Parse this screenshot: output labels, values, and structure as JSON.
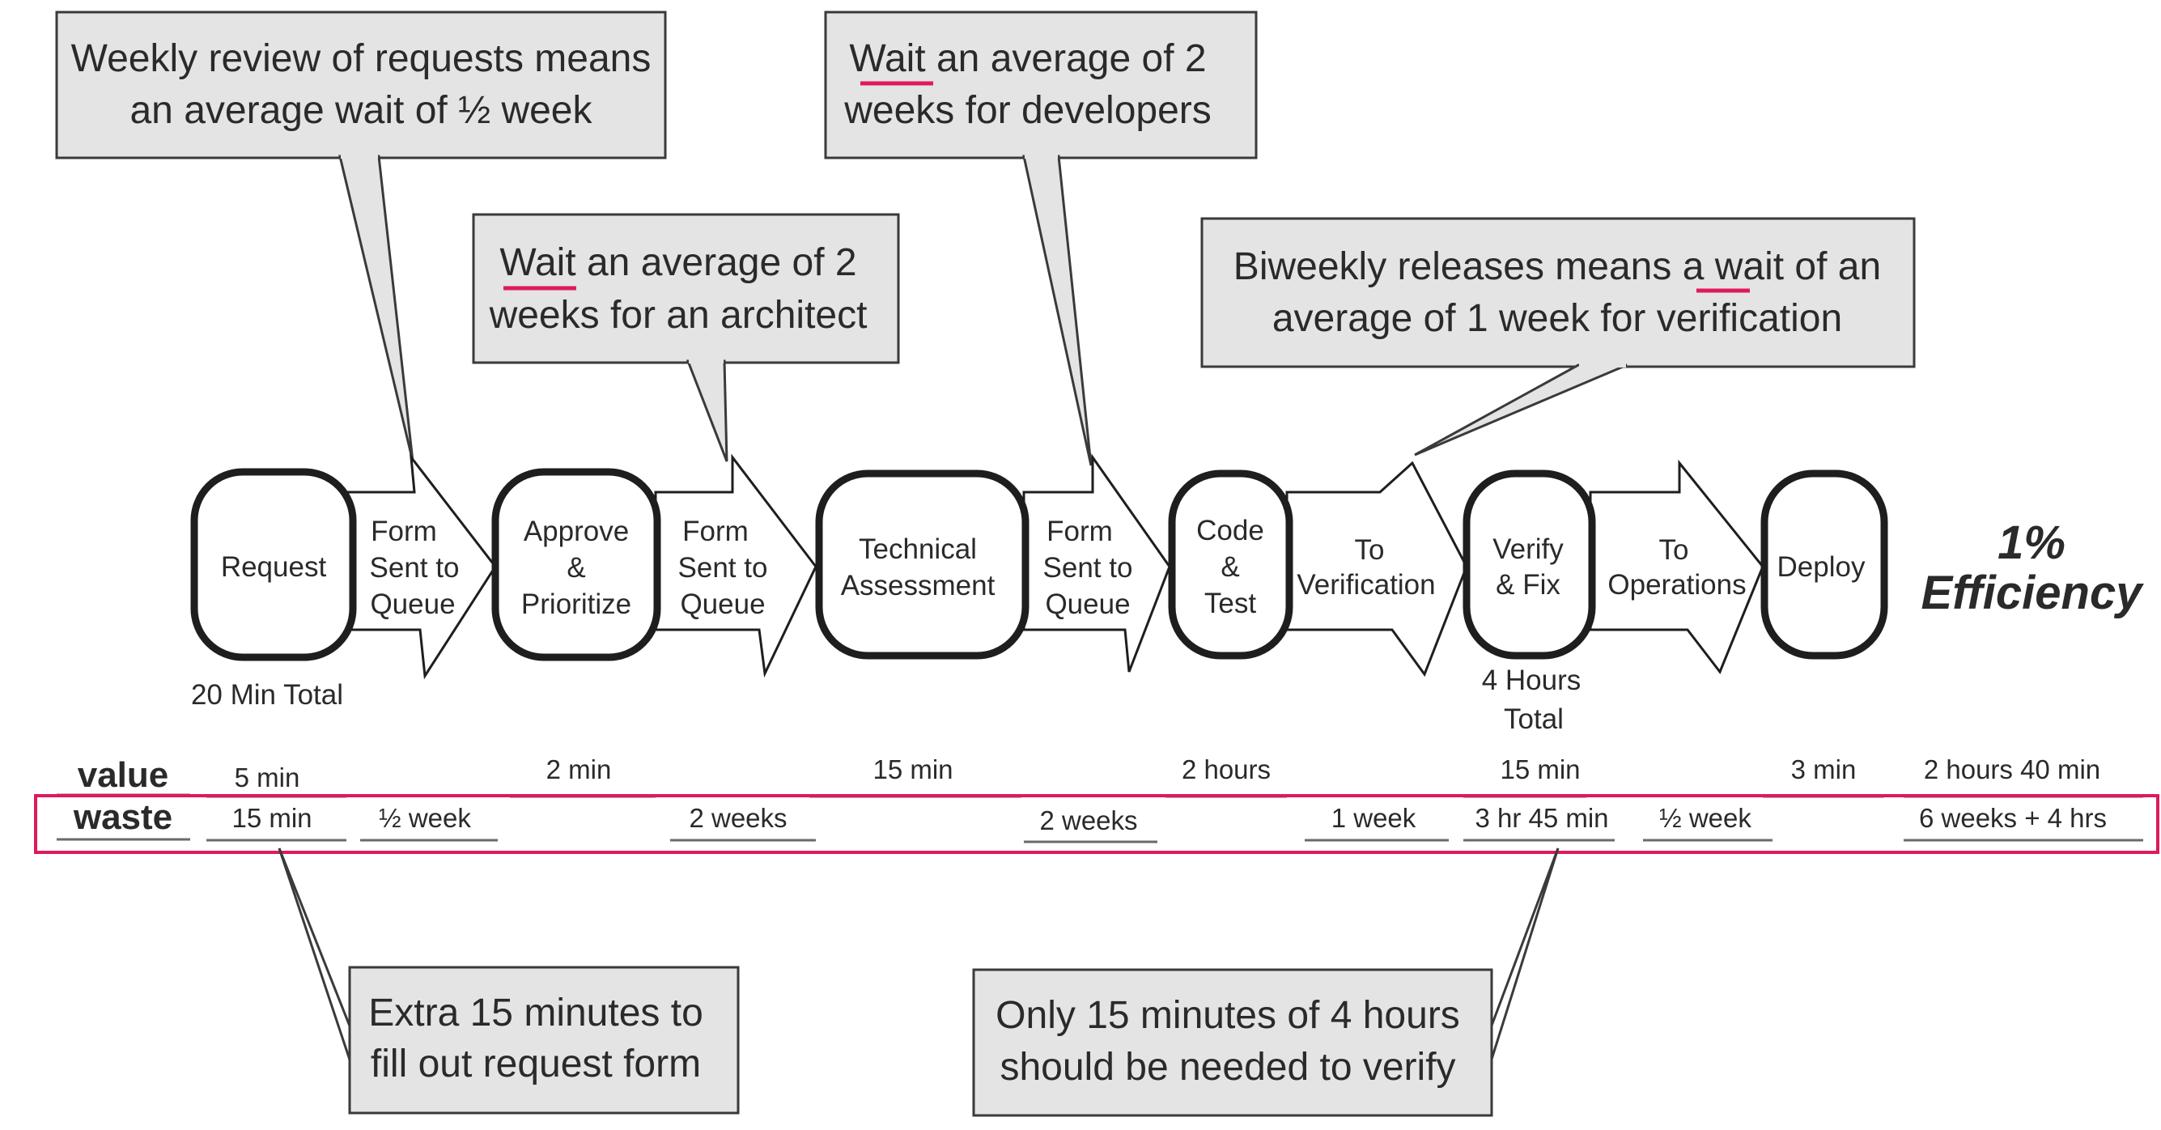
{
  "callouts": {
    "weekly_review": [
      "Weekly review of requests means",
      "an average wait of ½ week"
    ],
    "architect_wait": [
      "Wait an average of 2",
      "weeks for an architect"
    ],
    "developer_wait": [
      "Wait an average of 2",
      "weeks for developers"
    ],
    "biweekly": [
      "Biweekly releases means a wait of an",
      "average of 1 week for verification"
    ],
    "request_form": [
      "Extra 15 minutes to",
      "fill out request form"
    ],
    "verify_time": [
      "Only 15 minutes of 4 hours",
      "should be needed to verify"
    ]
  },
  "steps": {
    "request": "Request",
    "approve": [
      "Approve",
      "&",
      "Prioritize"
    ],
    "technical": [
      "Technical",
      "Assessment"
    ],
    "code": [
      "Code",
      "&",
      "Test"
    ],
    "verify": [
      "Verify",
      "& Fix"
    ],
    "deploy": "Deploy"
  },
  "transitions": {
    "queue1": [
      "Form",
      "Sent to",
      "Queue"
    ],
    "queue2": [
      "Form",
      "Sent to",
      "Queue"
    ],
    "queue3": [
      "Form",
      "Sent to",
      "Queue"
    ],
    "verification": [
      "To",
      "Verification"
    ],
    "operations": [
      "To",
      "Operations"
    ]
  },
  "notes": {
    "request_total": "20 Min Total",
    "verify_total": [
      "4 Hours",
      "Total"
    ]
  },
  "efficiency": [
    "1%",
    "Efficiency"
  ],
  "row_labels": {
    "value": "value",
    "waste": "waste"
  },
  "value_row": {
    "request": "5 min",
    "approve": "2 min",
    "technical": "15 min",
    "code": "2 hours",
    "verify": "15 min",
    "deploy": "3 min",
    "total": "2 hours 40 min"
  },
  "waste_row": {
    "request": "15 min",
    "queue1": "½ week",
    "queue2": "2 weeks",
    "queue3": "2 weeks",
    "verification": "1 week",
    "verify": "3 hr 45 min",
    "operations": "½ week",
    "total": "6 weeks + 4 hrs"
  },
  "colors": {
    "highlight": "#e0195c",
    "callout_fill": "#e4e4e4",
    "outline": "#1e1e1e"
  }
}
